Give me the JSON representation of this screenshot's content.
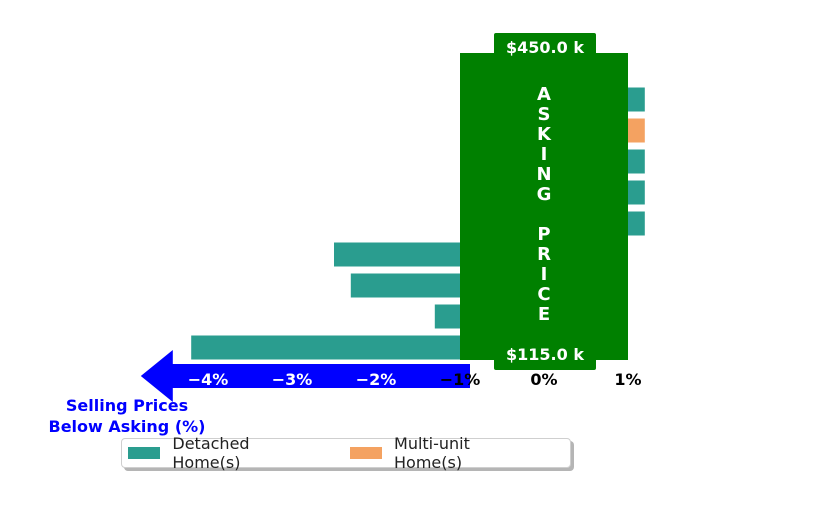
{
  "chart_data": {
    "type": "bar",
    "orientation": "horizontal",
    "bars": [
      {
        "series": "Multi-unit Home(s)",
        "value": null
      },
      {
        "series": "Detached Home(s)",
        "value": 1.2
      },
      {
        "series": "Multi-unit Home(s)",
        "value": 1.2
      },
      {
        "series": "Detached Home(s)",
        "value": 1.2
      },
      {
        "series": "Detached Home(s)",
        "value": 1.2
      },
      {
        "series": "Detached Home(s)",
        "value": 1.2
      },
      {
        "series": "Detached Home(s)",
        "value": -2.5
      },
      {
        "series": "Detached Home(s)",
        "value": -2.3
      },
      {
        "series": "Detached Home(s)",
        "value": -1.3
      },
      {
        "series": "Detached Home(s)",
        "value": -4.2
      }
    ],
    "xlim": [
      -4.8,
      1.2
    ],
    "x_ticks": [
      {
        "value": -4,
        "label": "−4%"
      },
      {
        "value": -3,
        "label": "−3%"
      },
      {
        "value": -2,
        "label": "−2%"
      },
      {
        "value": -1,
        "label": "−1%"
      },
      {
        "value": 0,
        "label": "0%"
      },
      {
        "value": 1,
        "label": "1%"
      }
    ],
    "series_colors": {
      "Detached Home(s)": "#2a9d8f",
      "Multi-unit Home(s)": "#f4a261"
    },
    "asking_price_band": {
      "range": [
        -1,
        1
      ],
      "color": "#008000",
      "label_letters": [
        "A",
        "S",
        "K",
        "I",
        "N",
        "G",
        "",
        "P",
        "R",
        "I",
        "C",
        "E"
      ],
      "top_label": "$450.0 k",
      "bottom_label": "$115.0 k"
    },
    "below_asking_arrow": {
      "color": "#0000ff",
      "label_line1": "Selling Prices",
      "label_line2": "Below Asking (%)"
    }
  },
  "legend": {
    "items": [
      {
        "label": "Detached Home(s)",
        "color": "#2a9d8f"
      },
      {
        "label": "Multi-unit Home(s)",
        "color": "#f4a261"
      }
    ]
  }
}
